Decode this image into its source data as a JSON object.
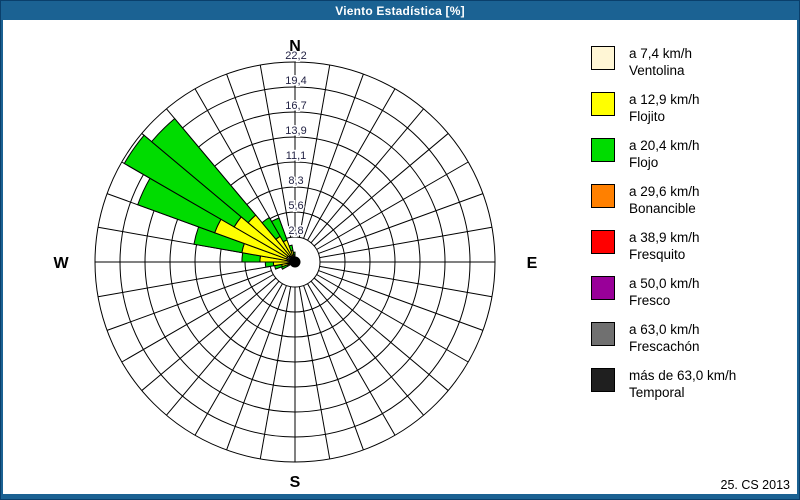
{
  "window": {
    "title": "Viento Estadística [%]",
    "footer": "25. CS 2013",
    "title_bar_color": "#1b6293",
    "border_color": "#11507f"
  },
  "legend": {
    "items": [
      {
        "color": "#FFF6D5",
        "line1": "a 7,4 km/h",
        "line2": "Ventolina"
      },
      {
        "color": "#FFFF00",
        "line1": "a 12,9 km/h",
        "line2": "Flojito"
      },
      {
        "color": "#00DC00",
        "line1": "a 20,4 km/h",
        "line2": "Flojo"
      },
      {
        "color": "#FF8000",
        "line1": "a 29,6 km/h",
        "line2": "Bonancible"
      },
      {
        "color": "#FF0000",
        "line1": "a 38,9 km/h",
        "line2": "Fresquito"
      },
      {
        "color": "#990099",
        "line1": "a 50,0 km/h",
        "line2": "Fresco"
      },
      {
        "color": "#707070",
        "line1": "a 63,0 km/h",
        "line2": "Frescachón"
      },
      {
        "color": "#1F1F1F",
        "line1": "más de 63,0 km/h",
        "line2": "Temporal"
      }
    ]
  },
  "chart_data": {
    "type": "wind_rose",
    "title": "Viento Estadística [%]",
    "units": "%",
    "sector_width_deg": 10,
    "max_pct": 22.22,
    "rings_pct": [
      2.78,
      5.56,
      8.33,
      11.11,
      13.89,
      16.67,
      19.44,
      22.22
    ],
    "ring_labels": [
      "2,8",
      "5,6",
      "8,3",
      "11,1",
      "13,9",
      "16,7",
      "19,4",
      "22,2"
    ],
    "compass": {
      "n": "N",
      "e": "E",
      "s": "S",
      "w": "W"
    },
    "categories": [
      {
        "name": "Ventolina",
        "color": "#FFF6D5"
      },
      {
        "name": "Flojito",
        "color": "#FFFF00"
      },
      {
        "name": "Flojo",
        "color": "#00DC00"
      }
    ],
    "sectors": [
      {
        "from": 240,
        "to": 250,
        "cum": [
          0.2,
          0.9,
          1.6
        ]
      },
      {
        "from": 250,
        "to": 260,
        "cum": [
          0.3,
          1.5,
          2.3
        ]
      },
      {
        "from": 260,
        "to": 270,
        "cum": [
          0.4,
          2.4,
          3.3
        ]
      },
      {
        "from": 270,
        "to": 280,
        "cum": [
          0.6,
          3.9,
          5.9
        ]
      },
      {
        "from": 280,
        "to": 290,
        "cum": [
          0.9,
          6.0,
          11.4
        ]
      },
      {
        "from": 290,
        "to": 300,
        "cum": [
          1.0,
          9.5,
          18.6
        ]
      },
      {
        "from": 300,
        "to": 310,
        "cum": [
          1.0,
          7.8,
          21.9
        ]
      },
      {
        "from": 310,
        "to": 320,
        "cum": [
          0.9,
          6.8,
          20.8
        ]
      },
      {
        "from": 320,
        "to": 330,
        "cum": [
          0.8,
          3.3,
          5.7
        ]
      },
      {
        "from": 330,
        "to": 340,
        "cum": [
          0.6,
          2.6,
          5.2
        ]
      },
      {
        "from": 340,
        "to": 350,
        "cum": [
          0.5,
          1.3,
          1.9
        ]
      },
      {
        "from": 350,
        "to": 360,
        "cum": [
          0.3,
          0.8,
          1.1
        ]
      }
    ]
  }
}
